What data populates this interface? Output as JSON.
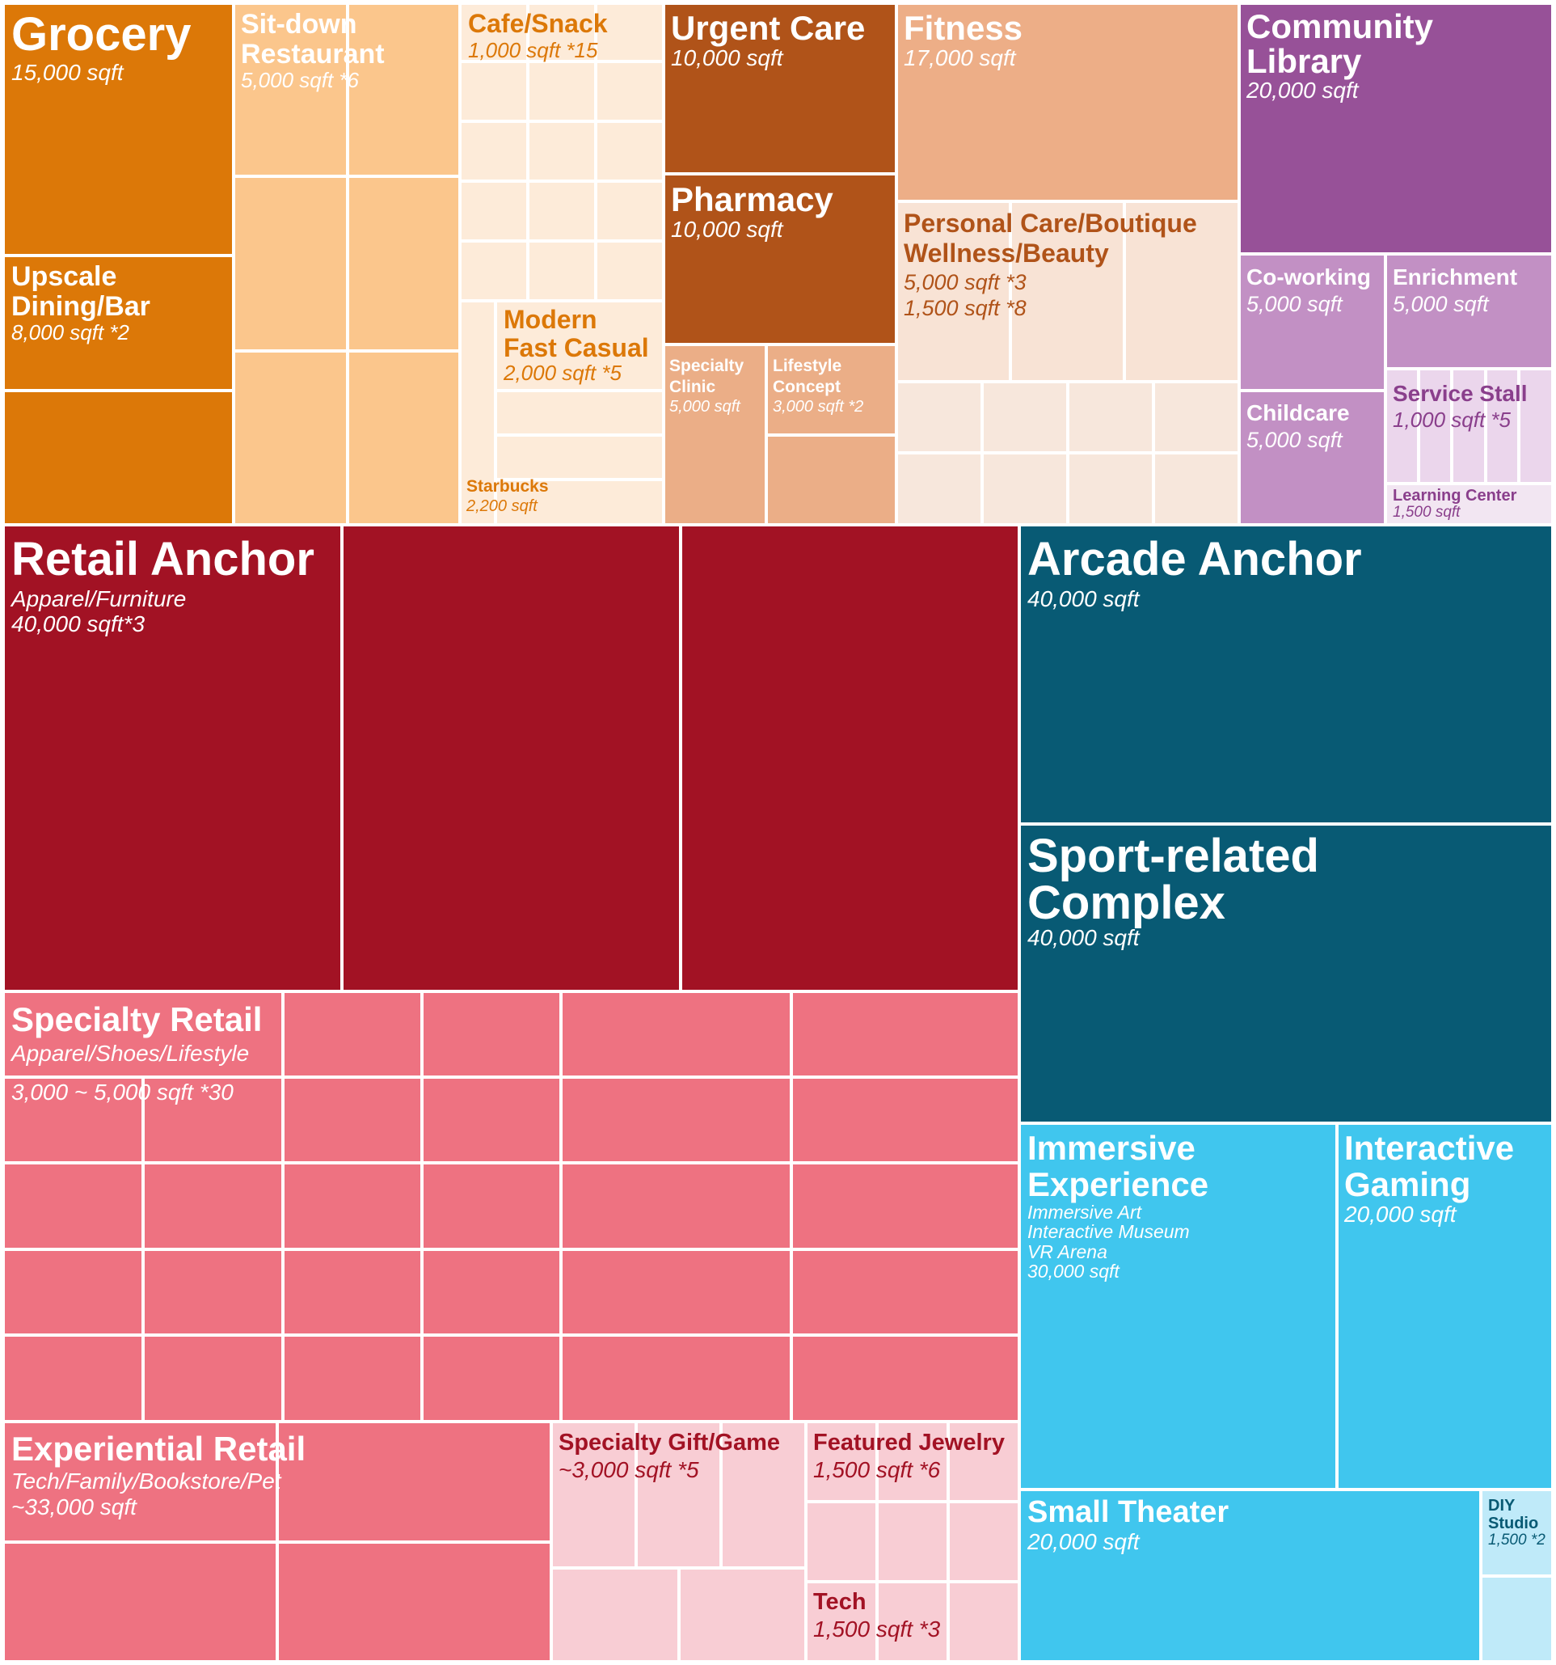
{
  "chart_data": {
    "type": "treemap",
    "title": "",
    "colors": {
      "grocery": "#dc7808",
      "sitdown": "#fbc68c",
      "cafe": "#fdebd9",
      "care": "#b05319",
      "clinic": "#ebae87",
      "fitness": "#edae87",
      "personal": "#f8e3d5",
      "personal_small": "#f7e7dc",
      "library": "#975198",
      "cowork": "#c290c4",
      "stall": "#ebd6ec",
      "learning": "#f2e6f2",
      "retail_anchor": "#a21224",
      "specialty": "#ee7281",
      "gift": "#f8cdd4",
      "arcade": "#085a74",
      "immersive": "#40c6ee",
      "diy": "#bfeaf9",
      "border": "#ffffff",
      "text_light": "#ffffff",
      "text_grocery": "#dc7808",
      "text_purple": "#8a3f8c",
      "text_maroon": "#a21224",
      "text_teal": "#085a74"
    },
    "groups": [
      {
        "name": "Grocery",
        "details": [
          "15,000 sqft"
        ],
        "sqft": 15000,
        "count": 1
      },
      {
        "name": "Upscale Dining/Bar",
        "details": [
          "8,000 sqft *2"
        ],
        "sqft": 8000,
        "count": 2
      },
      {
        "name": "Sit-down Restaurant",
        "details": [
          "5,000 sqft *6"
        ],
        "sqft": 5000,
        "count": 6
      },
      {
        "name": "Cafe/Snack",
        "details": [
          "1,000 sqft *15"
        ],
        "sqft": 1000,
        "count": 15
      },
      {
        "name": "Modern Fast Casual",
        "details": [
          "2,000 sqft *5"
        ],
        "sqft": 2000,
        "count": 5
      },
      {
        "name": "Starbucks",
        "details": [
          "2,200 sqft"
        ],
        "sqft": 2200,
        "count": 1
      },
      {
        "name": "Urgent Care",
        "details": [
          "10,000 sqft"
        ],
        "sqft": 10000,
        "count": 1
      },
      {
        "name": "Pharmacy",
        "details": [
          "10,000 sqft"
        ],
        "sqft": 10000,
        "count": 1
      },
      {
        "name": "Specialty Clinic",
        "details": [
          "5,000 sqft"
        ],
        "sqft": 5000,
        "count": 1
      },
      {
        "name": "Lifestyle Concept",
        "details": [
          "3,000 sqft *2"
        ],
        "sqft": 3000,
        "count": 2
      },
      {
        "name": "Fitness",
        "details": [
          "17,000 sqft"
        ],
        "sqft": 17000,
        "count": 1
      },
      {
        "name": "Personal Care/Boutique Wellness/Beauty",
        "details": [
          "5,000 sqft *3",
          "1,500 sqft *8"
        ],
        "sqft": 5000,
        "count": 11
      },
      {
        "name": "Community Library",
        "details": [
          "20,000 sqft"
        ],
        "sqft": 20000,
        "count": 1
      },
      {
        "name": "Co-working",
        "details": [
          "5,000 sqft"
        ],
        "sqft": 5000,
        "count": 1
      },
      {
        "name": "Enrichment",
        "details": [
          "5,000 sqft"
        ],
        "sqft": 5000,
        "count": 1
      },
      {
        "name": "Childcare",
        "details": [
          "5,000 sqft"
        ],
        "sqft": 5000,
        "count": 1
      },
      {
        "name": "Service Stall",
        "details": [
          "1,000 sqft *5"
        ],
        "sqft": 1000,
        "count": 5
      },
      {
        "name": "Learning Center",
        "details": [
          "1,500 sqft"
        ],
        "sqft": 1500,
        "count": 1
      },
      {
        "name": "Retail Anchor",
        "details": [
          "Apparel/Furniture",
          "40,000 sqft*3"
        ],
        "sqft": 40000,
        "count": 3
      },
      {
        "name": "Specialty Retail",
        "details": [
          "Apparel/Shoes/Lifestyle",
          "3,000 ~ 5,000 sqft *30"
        ],
        "sqft": 4000,
        "count": 30
      },
      {
        "name": "Experiential Retail",
        "details": [
          "Tech/Family/Bookstore/Pet",
          "~33,000 sqft"
        ],
        "sqft": 33000,
        "count": 4
      },
      {
        "name": "Specialty Gift/Game",
        "details": [
          "~3,000 sqft *5"
        ],
        "sqft": 3000,
        "count": 5
      },
      {
        "name": "Featured Jewelry",
        "details": [
          "1,500 sqft *6"
        ],
        "sqft": 1500,
        "count": 6
      },
      {
        "name": "Tech",
        "details": [
          "1,500 sqft *3"
        ],
        "sqft": 1500,
        "count": 3
      },
      {
        "name": "Arcade Anchor",
        "details": [
          "40,000 sqft"
        ],
        "sqft": 40000,
        "count": 1
      },
      {
        "name": "Sport-related Complex",
        "details": [
          "40,000 sqft"
        ],
        "sqft": 40000,
        "count": 1
      },
      {
        "name": "Immersive Experience",
        "details": [
          "Immersive Art",
          "Interactive Museum",
          "VR Arena",
          "30,000 sqft"
        ],
        "sqft": 30000,
        "count": 1
      },
      {
        "name": "Interactive Gaming",
        "details": [
          "20,000 sqft"
        ],
        "sqft": 20000,
        "count": 1
      },
      {
        "name": "Small Theater",
        "details": [
          "20,000 sqft"
        ],
        "sqft": 20000,
        "count": 1
      },
      {
        "name": "DIY Studio",
        "details": [
          "1,500 *2"
        ],
        "sqft": 1500,
        "count": 2
      }
    ],
    "labels": [
      {
        "id": "grocery",
        "lines": [
          {
            "text": "Grocery",
            "kind": "t"
          },
          {
            "text": "15,000 sqft",
            "kind": "s"
          }
        ]
      },
      {
        "id": "upscale",
        "lines": [
          {
            "text": "Upscale",
            "kind": "t"
          },
          {
            "text": "Dining/Bar",
            "kind": "t"
          },
          {
            "text": "8,000 sqft *2",
            "kind": "s"
          }
        ]
      },
      {
        "id": "sitdown",
        "lines": [
          {
            "text": "Sit-down",
            "kind": "t"
          },
          {
            "text": "Restaurant",
            "kind": "t"
          },
          {
            "text": "5,000 sqft *6",
            "kind": "s"
          }
        ]
      },
      {
        "id": "cafe",
        "lines": [
          {
            "text": "Cafe/Snack",
            "kind": "t"
          },
          {
            "text": "1,000 sqft *15",
            "kind": "s"
          }
        ]
      },
      {
        "id": "fastcasual",
        "lines": [
          {
            "text": "Modern",
            "kind": "t"
          },
          {
            "text": "Fast Casual",
            "kind": "t"
          },
          {
            "text": "2,000 sqft *5",
            "kind": "s"
          }
        ]
      },
      {
        "id": "starbucks",
        "lines": [
          {
            "text": "Starbucks",
            "kind": "t"
          },
          {
            "text": "2,200 sqft",
            "kind": "s"
          }
        ]
      },
      {
        "id": "urgent",
        "lines": [
          {
            "text": "Urgent Care",
            "kind": "t"
          },
          {
            "text": "10,000 sqft",
            "kind": "s"
          }
        ]
      },
      {
        "id": "pharmacy",
        "lines": [
          {
            "text": "Pharmacy",
            "kind": "t"
          },
          {
            "text": "10,000 sqft",
            "kind": "s"
          }
        ]
      },
      {
        "id": "clinic",
        "lines": [
          {
            "text": "Specialty",
            "kind": "t"
          },
          {
            "text": "Clinic",
            "kind": "t"
          },
          {
            "text": "5,000 sqft",
            "kind": "s"
          }
        ]
      },
      {
        "id": "lifestyle",
        "lines": [
          {
            "text": "Lifestyle",
            "kind": "t"
          },
          {
            "text": "Concept",
            "kind": "t"
          },
          {
            "text": "3,000 sqft *2",
            "kind": "s"
          }
        ]
      },
      {
        "id": "fitness",
        "lines": [
          {
            "text": "Fitness",
            "kind": "t"
          },
          {
            "text": "17,000 sqft",
            "kind": "s"
          }
        ]
      },
      {
        "id": "personal",
        "lines": [
          {
            "text": "Personal Care/Boutique",
            "kind": "t"
          },
          {
            "text": "Wellness/Beauty",
            "kind": "t"
          },
          {
            "text": "5,000 sqft *3",
            "kind": "s"
          },
          {
            "text": "1,500 sqft *8",
            "kind": "s"
          }
        ]
      },
      {
        "id": "library",
        "lines": [
          {
            "text": "Community",
            "kind": "t"
          },
          {
            "text": "Library",
            "kind": "t"
          },
          {
            "text": "20,000 sqft",
            "kind": "s"
          }
        ]
      },
      {
        "id": "cowork",
        "lines": [
          {
            "text": "Co-working",
            "kind": "t"
          },
          {
            "text": "5,000 sqft",
            "kind": "s"
          }
        ]
      },
      {
        "id": "enrich",
        "lines": [
          {
            "text": "Enrichment",
            "kind": "t"
          },
          {
            "text": "5,000 sqft",
            "kind": "s"
          }
        ]
      },
      {
        "id": "childcare",
        "lines": [
          {
            "text": "Childcare",
            "kind": "t"
          },
          {
            "text": "5,000 sqft",
            "kind": "s"
          }
        ]
      },
      {
        "id": "stall",
        "lines": [
          {
            "text": "Service Stall",
            "kind": "t"
          },
          {
            "text": "1,000 sqft *5",
            "kind": "s"
          }
        ]
      },
      {
        "id": "learning",
        "lines": [
          {
            "text": "Learning Center",
            "kind": "t"
          },
          {
            "text": "1,500 sqft",
            "kind": "s"
          }
        ]
      },
      {
        "id": "anchor",
        "lines": [
          {
            "text": "Retail Anchor",
            "kind": "t"
          },
          {
            "text": "Apparel/Furniture",
            "kind": "s"
          },
          {
            "text": "40,000 sqft*3",
            "kind": "s"
          }
        ]
      },
      {
        "id": "specialty",
        "lines": [
          {
            "text": "Specialty Retail",
            "kind": "t"
          },
          {
            "text": "Apparel/Shoes/Lifestyle",
            "kind": "s"
          },
          {
            "text": "3,000 ~ 5,000 sqft *30",
            "kind": "s"
          }
        ]
      },
      {
        "id": "experiential",
        "lines": [
          {
            "text": "Experiential Retail",
            "kind": "t"
          },
          {
            "text": "Tech/Family/Bookstore/Pet",
            "kind": "s"
          },
          {
            "text": "~33,000 sqft",
            "kind": "s"
          }
        ]
      },
      {
        "id": "gift",
        "lines": [
          {
            "text": "Specialty Gift/Game",
            "kind": "t"
          },
          {
            "text": "~3,000 sqft *5",
            "kind": "s"
          }
        ]
      },
      {
        "id": "jewelry",
        "lines": [
          {
            "text": "Featured Jewelry",
            "kind": "t"
          },
          {
            "text": "1,500 sqft *6",
            "kind": "s"
          }
        ]
      },
      {
        "id": "tech",
        "lines": [
          {
            "text": "Tech",
            "kind": "t"
          },
          {
            "text": "1,500 sqft *3",
            "kind": "s"
          }
        ]
      },
      {
        "id": "arcade",
        "lines": [
          {
            "text": "Arcade Anchor",
            "kind": "t"
          },
          {
            "text": "40,000 sqft",
            "kind": "s"
          }
        ]
      },
      {
        "id": "sport",
        "lines": [
          {
            "text": "Sport-related",
            "kind": "t"
          },
          {
            "text": "Complex",
            "kind": "t"
          },
          {
            "text": "40,000 sqft",
            "kind": "s"
          }
        ]
      },
      {
        "id": "immersive",
        "lines": [
          {
            "text": "Immersive",
            "kind": "t"
          },
          {
            "text": "Experience",
            "kind": "t"
          },
          {
            "text": "Immersive Art",
            "kind": "s"
          },
          {
            "text": "Interactive Museum",
            "kind": "s"
          },
          {
            "text": "VR Arena",
            "kind": "s"
          },
          {
            "text": "30,000 sqft",
            "kind": "s"
          }
        ]
      },
      {
        "id": "gaming",
        "lines": [
          {
            "text": "Interactive",
            "kind": "t"
          },
          {
            "text": "Gaming",
            "kind": "t"
          },
          {
            "text": "20,000 sqft",
            "kind": "s"
          }
        ]
      },
      {
        "id": "theater",
        "lines": [
          {
            "text": "Small Theater",
            "kind": "t"
          },
          {
            "text": "20,000 sqft",
            "kind": "s"
          }
        ]
      },
      {
        "id": "diy",
        "lines": [
          {
            "text": "DIY",
            "kind": "t"
          },
          {
            "text": "Studio",
            "kind": "t"
          },
          {
            "text": "1,500 *2",
            "kind": "s"
          }
        ]
      }
    ]
  }
}
